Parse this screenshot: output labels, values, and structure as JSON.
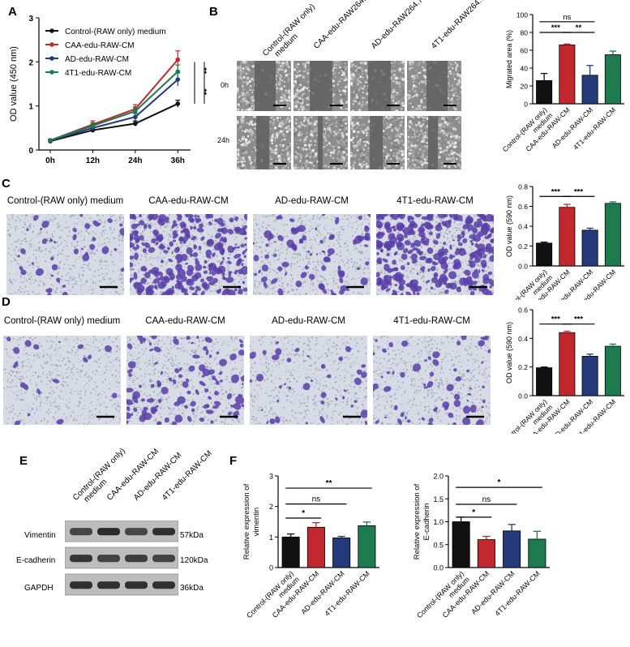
{
  "panels": {
    "A": {
      "label": "A"
    },
    "B": {
      "label": "B"
    },
    "C": {
      "label": "C"
    },
    "D": {
      "label": "D"
    },
    "E": {
      "label": "E"
    },
    "F": {
      "label": "F"
    }
  },
  "groups_short": [
    "Control-(RAW only) medium",
    "CAA-edu-RAW-CM",
    "AD-edu-RAW-CM",
    "4T1-edu-RAW-CM"
  ],
  "colors": {
    "control": "#111111",
    "caa": "#c0282d",
    "ad": "#243a7a",
    "t41": "#1e7a4f"
  },
  "panelB": {
    "col_headers": [
      "Control-(RAW only)\nmedium",
      "CAA-edu-RAW264.7-CM",
      "AD-edu-RAW264.7-CM",
      "4T1-edu-RAW264.7-CM"
    ],
    "col_header_lines": [
      [
        "Control-(RAW only)",
        "medium"
      ],
      [
        "CAA-edu-RAW264.7-CM"
      ],
      [
        "AD-edu-RAW264.7-CM"
      ],
      [
        "4T1-edu-RAW264.7-CM"
      ]
    ],
    "row_labels": [
      "0h",
      "24h"
    ]
  },
  "panelC": {
    "captions": [
      "Control-(RAW only) medium",
      "CAA-edu-RAW-CM",
      "AD-edu-RAW-CM",
      "4T1-edu-RAW-CM"
    ]
  },
  "panelD": {
    "captions": [
      "Control-(RAW only) medium",
      "CAA-edu-RAW-CM",
      "AD-edu-RAW-CM",
      "4T1-edu-RAW-CM"
    ]
  },
  "panelE": {
    "col_headers": [
      [
        "Control-(RAW only)",
        "medium"
      ],
      [
        "CAA-edu-RAW-CM"
      ],
      [
        "AD-edu-RAW-CM"
      ],
      [
        "4T1-edu-RAW-CM"
      ]
    ],
    "rows": [
      {
        "protein": "Vimentin",
        "size": "57kDa"
      },
      {
        "protein": "E-cadherin",
        "size": "120kDa"
      },
      {
        "protein": "GAPDH",
        "size": "36kDa"
      }
    ]
  },
  "chart_data": [
    {
      "id": "A",
      "type": "line",
      "x": [
        "0h",
        "12h",
        "24h",
        "36h"
      ],
      "ylabel": "OD value (450 nm)",
      "ylim": [
        0,
        3
      ],
      "yticks": [
        0,
        1,
        2,
        3
      ],
      "legend": "top-left",
      "series": [
        {
          "name": "Control-(RAW only) medium",
          "values": [
            0.2,
            0.45,
            0.6,
            1.05
          ],
          "errors": [
            0.02,
            0.05,
            0.06,
            0.08
          ]
        },
        {
          "name": "CAA-edu-RAW-CM",
          "values": [
            0.22,
            0.58,
            0.93,
            2.05
          ],
          "errors": [
            0.02,
            0.08,
            0.1,
            0.2
          ]
        },
        {
          "name": "AD-edu-RAW-CM",
          "values": [
            0.21,
            0.5,
            0.75,
            1.6
          ],
          "errors": [
            0.02,
            0.06,
            0.08,
            0.15
          ]
        },
        {
          "name": "4T1-edu-RAW-CM",
          "values": [
            0.22,
            0.55,
            0.88,
            1.78
          ],
          "errors": [
            0.02,
            0.07,
            0.1,
            0.15
          ]
        }
      ],
      "significance": [
        "**",
        "**",
        "***"
      ]
    },
    {
      "id": "B",
      "type": "bar",
      "categories": [
        "Control-(RAW only)\nmedium",
        "CAA-edu-RAW-CM",
        "AD-edu-RAW-CM",
        "4T1-edu-RAW-CM"
      ],
      "category_lines": [
        [
          "Control-(RAW only)",
          "medium"
        ],
        [
          "CAA-edu-RAW-CM"
        ],
        [
          "AD-edu-RAW-CM"
        ],
        [
          "4T1-edu-RAW-CM"
        ]
      ],
      "values": [
        26,
        66,
        32,
        55
      ],
      "errors": [
        8,
        1,
        11,
        4
      ],
      "ylabel": "Migrated area (%)",
      "ylim": [
        0,
        100
      ],
      "yticks": [
        0,
        20,
        40,
        60,
        80,
        100
      ],
      "brackets": [
        {
          "from": 0,
          "to": 2,
          "label": "ns",
          "y": 92
        },
        {
          "from": 0,
          "to": 1,
          "label": "***",
          "y": 80
        },
        {
          "from": 1,
          "to": 2,
          "label": "**",
          "y": 80
        }
      ]
    },
    {
      "id": "C",
      "type": "bar",
      "categories": [
        "Control-(RAW only)\nmedium",
        "CAA-edu-RAW-CM",
        "AD-edu-RAW-CM",
        "4T1-edu-RAW-CM"
      ],
      "category_lines": [
        [
          "Control-(RAW only)",
          "medium"
        ],
        [
          "CAA-edu-RAW-CM"
        ],
        [
          "AD-edu-RAW-CM"
        ],
        [
          "4T1-edu-RAW-CM"
        ]
      ],
      "values": [
        0.23,
        0.59,
        0.36,
        0.63
      ],
      "errors": [
        0.01,
        0.03,
        0.02,
        0.015
      ],
      "ylabel": "OD value (590 nm)",
      "ylim": [
        0,
        0.8
      ],
      "yticks": [
        0.0,
        0.2,
        0.4,
        0.6,
        0.8
      ],
      "tick_labels": [
        "0.0",
        "0.2",
        "0.4",
        "0.6",
        "0.8"
      ],
      "brackets": [
        {
          "from": 0,
          "to": 1,
          "label": "***",
          "y": 0.7
        },
        {
          "from": 1,
          "to": 2,
          "label": "***",
          "y": 0.7
        }
      ]
    },
    {
      "id": "D",
      "type": "bar",
      "categories": [
        "Control-(RAW only)\nmedium",
        "CAA-edu-RAW-CM",
        "AD-edu-RAW-CM",
        "4T1-edu-RAW-CM"
      ],
      "category_lines": [
        [
          "Control-(RAW only)",
          "medium"
        ],
        [
          "CAA-edu-RAW-CM"
        ],
        [
          "AD-edu-RAW-CM"
        ],
        [
          "4T1-edu-RAW-CM"
        ]
      ],
      "values": [
        0.195,
        0.44,
        0.275,
        0.345
      ],
      "errors": [
        0.005,
        0.01,
        0.015,
        0.015
      ],
      "ylabel": "OD value (590 nm)",
      "ylim": [
        0,
        0.6
      ],
      "yticks": [
        0.0,
        0.2,
        0.4,
        0.6
      ],
      "tick_labels": [
        "0.0",
        "0.2",
        "0.4",
        "0.6"
      ],
      "brackets": [
        {
          "from": 0,
          "to": 1,
          "label": "***",
          "y": 0.5
        },
        {
          "from": 1,
          "to": 2,
          "label": "***",
          "y": 0.5
        }
      ]
    },
    {
      "id": "F1",
      "type": "bar",
      "categories": [
        "Control-(RAW only)\nmedium",
        "CAA-edu-RAW-CM",
        "AD-edu-RAW-CM",
        "4T1-edu-RAW-CM"
      ],
      "category_lines": [
        [
          "Control-(RAW only)",
          "medium"
        ],
        [
          "CAA-edu-RAW-CM"
        ],
        [
          "AD-edu-RAW-CM"
        ],
        [
          "4T1-edu-RAW-CM"
        ]
      ],
      "values": [
        1.0,
        1.32,
        0.97,
        1.37
      ],
      "errors": [
        0.1,
        0.15,
        0.05,
        0.12
      ],
      "ylabel_lines": [
        "Relative expression of",
        "vimentin"
      ],
      "ylim": [
        0,
        3
      ],
      "yticks": [
        0,
        1,
        2,
        3
      ],
      "tick_labels": [
        "0",
        "1",
        "2",
        "3"
      ],
      "brackets": [
        {
          "from": 0,
          "to": 3,
          "label": "**",
          "y": 2.6
        },
        {
          "from": 0,
          "to": 2,
          "label": "ns",
          "y": 2.08
        },
        {
          "from": 0,
          "to": 1,
          "label": "*",
          "y": 1.62
        }
      ]
    },
    {
      "id": "F2",
      "type": "bar",
      "categories": [
        "Control-(RAW only)\nmedium",
        "CAA-edu-RAW-CM",
        "AD-edu-RAW-CM",
        "4T1-edu-RAW-CM"
      ],
      "category_lines": [
        [
          "Control-(RAW only)",
          "medium"
        ],
        [
          "CAA-edu-RAW-CM"
        ],
        [
          "AD-edu-RAW-CM"
        ],
        [
          "4T1-edu-RAW-CM"
        ]
      ],
      "values": [
        1.0,
        0.61,
        0.8,
        0.62
      ],
      "errors": [
        0.1,
        0.07,
        0.14,
        0.17
      ],
      "ylabel_lines": [
        "Relative expression of",
        "E-cadherin"
      ],
      "ylim": [
        0,
        2.0
      ],
      "yticks": [
        0,
        0.5,
        1.0,
        1.5,
        2.0
      ],
      "tick_labels": [
        "0.0",
        "0.5",
        "1.0",
        "1.5",
        "2.0"
      ],
      "brackets": [
        {
          "from": 0,
          "to": 3,
          "label": "*",
          "y": 1.75
        },
        {
          "from": 0,
          "to": 2,
          "label": "ns",
          "y": 1.38
        },
        {
          "from": 0,
          "to": 1,
          "label": "*",
          "y": 1.1
        }
      ]
    }
  ]
}
